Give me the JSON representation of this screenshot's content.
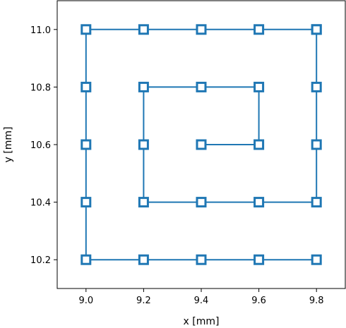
{
  "chart_data": {
    "type": "line",
    "title": "",
    "xlabel": "x [mm]",
    "ylabel": "y [mm]",
    "xlim": [
      8.9,
      9.9
    ],
    "ylim": [
      10.1,
      11.1
    ],
    "xticks": [
      9.0,
      9.2,
      9.4,
      9.6,
      9.8
    ],
    "yticks": [
      10.2,
      10.4,
      10.6,
      10.8,
      11.0
    ],
    "xtick_labels": [
      "9.0",
      "9.2",
      "9.4",
      "9.6",
      "9.8"
    ],
    "ytick_labels": [
      "10.2",
      "10.4",
      "10.6",
      "10.8",
      "11.0"
    ],
    "grid": false,
    "legend": "none",
    "series": [
      {
        "color": "#1f77b4",
        "marker": "open-square",
        "x": [
          9.4,
          9.6,
          9.6,
          9.4,
          9.2,
          9.2,
          9.2,
          9.4,
          9.6,
          9.8,
          9.8,
          9.8,
          9.8,
          9.8,
          9.6,
          9.4,
          9.2,
          9.0,
          9.0,
          9.0,
          9.0,
          9.0,
          9.2,
          9.4,
          9.6,
          9.8
        ],
        "y": [
          10.6,
          10.6,
          10.8,
          10.8,
          10.8,
          10.6,
          10.4,
          10.4,
          10.4,
          10.4,
          10.6,
          10.8,
          11.0,
          11.0,
          11.0,
          11.0,
          11.0,
          11.0,
          10.8,
          10.6,
          10.4,
          10.2,
          10.2,
          10.2,
          10.2,
          10.2
        ]
      }
    ]
  }
}
